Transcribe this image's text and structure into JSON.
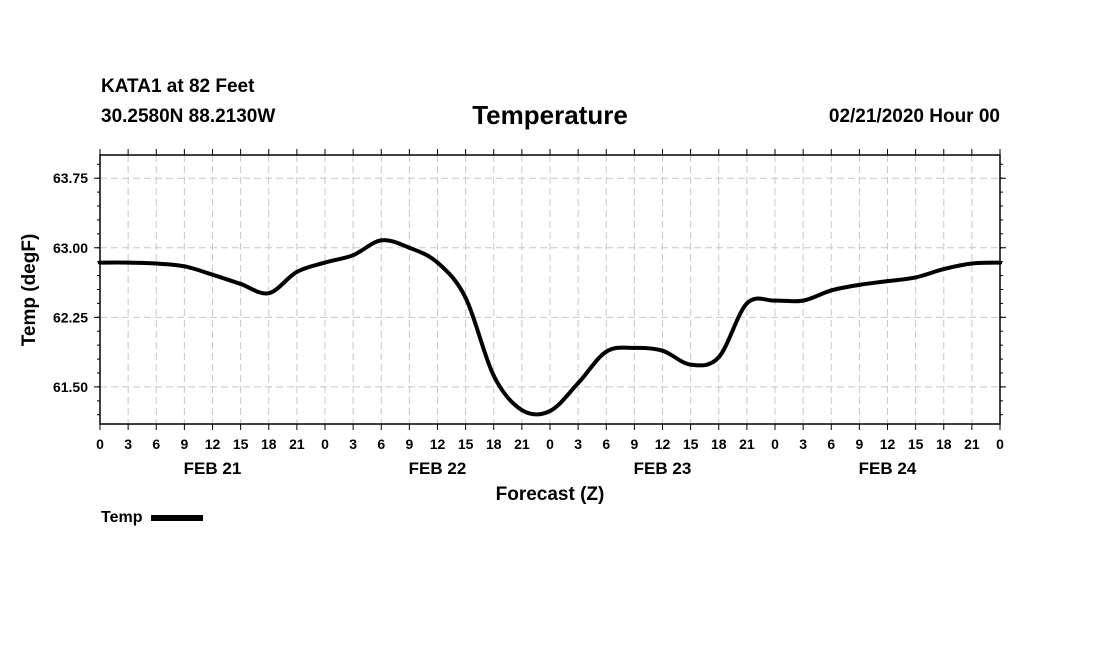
{
  "header": {
    "station": "KATA1 at 82 Feet",
    "coords": "30.2580N 88.2130W",
    "date": "02/21/2020 Hour 00"
  },
  "chart_data": {
    "type": "line",
    "title": "Temperature",
    "xlabel": "Forecast (Z)",
    "ylabel": "Temp (degF)",
    "xlim": [
      0,
      96
    ],
    "ylim": [
      61.1,
      64.0
    ],
    "y_ticks": [
      61.5,
      62.25,
      63.0,
      63.75
    ],
    "y_tick_labels": [
      "61.50",
      "62.25",
      "63.00",
      "63.75"
    ],
    "x_ticks": [
      0,
      3,
      6,
      9,
      12,
      15,
      18,
      21,
      24,
      27,
      30,
      33,
      36,
      39,
      42,
      45,
      48,
      51,
      54,
      57,
      60,
      63,
      66,
      69,
      72,
      75,
      78,
      81,
      84,
      87,
      90,
      93,
      96
    ],
    "x_tick_labels": [
      "0",
      "3",
      "6",
      "9",
      "12",
      "15",
      "18",
      "21",
      "0",
      "3",
      "6",
      "9",
      "12",
      "15",
      "18",
      "21",
      "0",
      "3",
      "6",
      "9",
      "12",
      "15",
      "18",
      "21",
      "0",
      "3",
      "6",
      "9",
      "12",
      "15",
      "18",
      "21",
      "0"
    ],
    "day_labels": [
      {
        "x": 12,
        "label": "FEB 21"
      },
      {
        "x": 36,
        "label": "FEB 22"
      },
      {
        "x": 60,
        "label": "FEB 23"
      },
      {
        "x": 84,
        "label": "FEB 24"
      }
    ],
    "grid": true,
    "legend": "bottom-left",
    "series": [
      {
        "name": "Temp",
        "color": "#000000",
        "x": [
          0,
          3,
          6,
          9,
          12,
          15,
          18,
          21,
          24,
          27,
          30,
          33,
          36,
          39,
          42,
          45,
          48,
          51,
          54,
          57,
          60,
          63,
          66,
          69,
          72,
          75,
          78,
          81,
          84,
          87,
          90,
          93,
          96
        ],
        "y": [
          62.84,
          62.84,
          62.83,
          62.8,
          62.71,
          62.61,
          62.51,
          62.74,
          62.84,
          62.92,
          63.08,
          63.0,
          62.84,
          62.46,
          61.62,
          61.25,
          61.24,
          61.54,
          61.88,
          61.92,
          61.89,
          61.74,
          61.82,
          62.4,
          62.43,
          62.43,
          62.54,
          62.6,
          62.64,
          62.68,
          62.77,
          62.83,
          62.84
        ]
      }
    ]
  }
}
